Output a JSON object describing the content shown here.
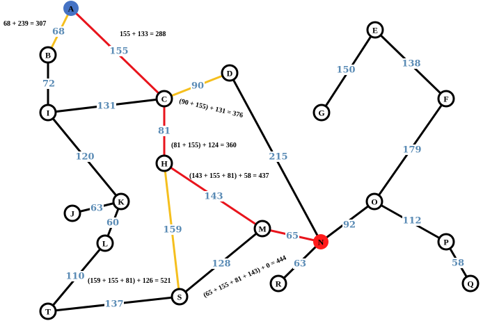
{
  "colors": {
    "default_edge": "#000000",
    "path_edge": "#e8141c",
    "alt_edge": "#f5bf1e",
    "weight_text": "#5a8bb5",
    "start_node": "#4472c4",
    "end_node": "#ff1a1a"
  },
  "nodes": [
    {
      "id": "A",
      "label": "A",
      "role": "start"
    },
    {
      "id": "B",
      "label": "B"
    },
    {
      "id": "C",
      "label": "C"
    },
    {
      "id": "D",
      "label": "D"
    },
    {
      "id": "E",
      "label": "E"
    },
    {
      "id": "F",
      "label": "F"
    },
    {
      "id": "G",
      "label": "G"
    },
    {
      "id": "H",
      "label": "H"
    },
    {
      "id": "I",
      "label": "I"
    },
    {
      "id": "J",
      "label": "J"
    },
    {
      "id": "K",
      "label": "K"
    },
    {
      "id": "L",
      "label": "L"
    },
    {
      "id": "M",
      "label": "M"
    },
    {
      "id": "N",
      "label": "N",
      "role": "end"
    },
    {
      "id": "O",
      "label": "O"
    },
    {
      "id": "P",
      "label": "P"
    },
    {
      "id": "Q",
      "label": "Q"
    },
    {
      "id": "R",
      "label": "R"
    },
    {
      "id": "S",
      "label": "S"
    },
    {
      "id": "T",
      "label": "T"
    }
  ],
  "edges": [
    {
      "from": "A",
      "to": "B",
      "weight": "68",
      "status": "alt"
    },
    {
      "from": "A",
      "to": "C",
      "weight": "155",
      "status": "path"
    },
    {
      "from": "B",
      "to": "I",
      "weight": "72",
      "status": "default"
    },
    {
      "from": "I",
      "to": "C",
      "weight": "131",
      "status": "default"
    },
    {
      "from": "C",
      "to": "D",
      "weight": "90",
      "status": "alt"
    },
    {
      "from": "C",
      "to": "H",
      "weight": "81",
      "status": "path"
    },
    {
      "from": "I",
      "to": "K",
      "weight": "120",
      "status": "default"
    },
    {
      "from": "J",
      "to": "K",
      "weight": "63",
      "status": "default"
    },
    {
      "from": "K",
      "to": "L",
      "weight": "60",
      "status": "default"
    },
    {
      "from": "L",
      "to": "T",
      "weight": "110",
      "status": "default"
    },
    {
      "from": "T",
      "to": "S",
      "weight": "137",
      "status": "default"
    },
    {
      "from": "H",
      "to": "S",
      "weight": "159",
      "status": "alt"
    },
    {
      "from": "H",
      "to": "M",
      "weight": "143",
      "status": "path"
    },
    {
      "from": "S",
      "to": "M",
      "weight": "128",
      "status": "default"
    },
    {
      "from": "M",
      "to": "N",
      "weight": "65",
      "status": "path"
    },
    {
      "from": "D",
      "to": "N",
      "weight": "215",
      "status": "default"
    },
    {
      "from": "N",
      "to": "R",
      "weight": "63",
      "status": "default"
    },
    {
      "from": "N",
      "to": "O",
      "weight": "92",
      "status": "default"
    },
    {
      "from": "O",
      "to": "F",
      "weight": "179",
      "status": "default"
    },
    {
      "from": "E",
      "to": "F",
      "weight": "138",
      "status": "default"
    },
    {
      "from": "E",
      "to": "G",
      "weight": "150",
      "status": "default"
    },
    {
      "from": "O",
      "to": "P",
      "weight": "112",
      "status": "default"
    },
    {
      "from": "P",
      "to": "Q",
      "weight": "58",
      "status": "default"
    }
  ],
  "annotations": [
    {
      "id": "anno-b",
      "text": "68 + 239 = 307"
    },
    {
      "id": "anno-c",
      "text": "155 + 133 = 288"
    },
    {
      "id": "anno-d",
      "text": "(90 + 155) + 131 = 376"
    },
    {
      "id": "anno-h",
      "text": "(81 + 155) + 124 = 360"
    },
    {
      "id": "anno-m",
      "text": "(143 + 155 + 81) + 58 = 437"
    },
    {
      "id": "anno-s",
      "text": "(159 + 155 + 81) + 126 = 521"
    },
    {
      "id": "anno-n",
      "text": "(65 + 155 + 81 + 143) + 0 = 444"
    }
  ]
}
